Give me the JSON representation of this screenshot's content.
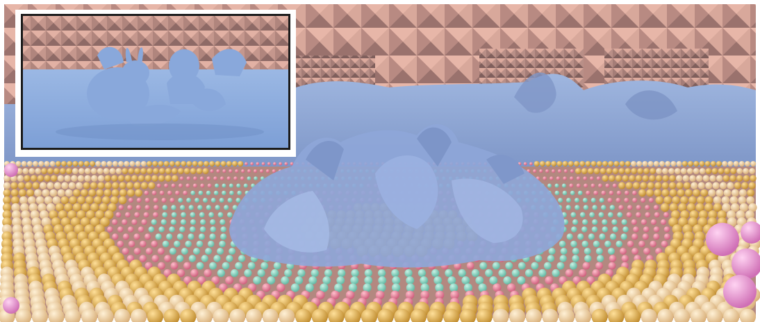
{
  "figure": {
    "main_panel": {
      "label": ""
    },
    "inset_panel": {
      "label": ""
    },
    "colors": {
      "background": "#ffffff",
      "wall": "#c99a90",
      "wall_shadow": "#8e6a66",
      "wall_light": "#e7b6a8",
      "fluid": "#8fa9d6",
      "fluid_dark": "#6f86b8",
      "fluid_light": "#b3c6ea",
      "ball_cream": "#f1d5a6",
      "ball_yellow": "#e2b35a",
      "ball_pink": "#e98aa1",
      "ball_teal": "#8fd9c5",
      "ball_magenta": "#e79ad4",
      "inset_floor": "#8fb0e0",
      "inset_border": "#1b1b1b"
    }
  }
}
